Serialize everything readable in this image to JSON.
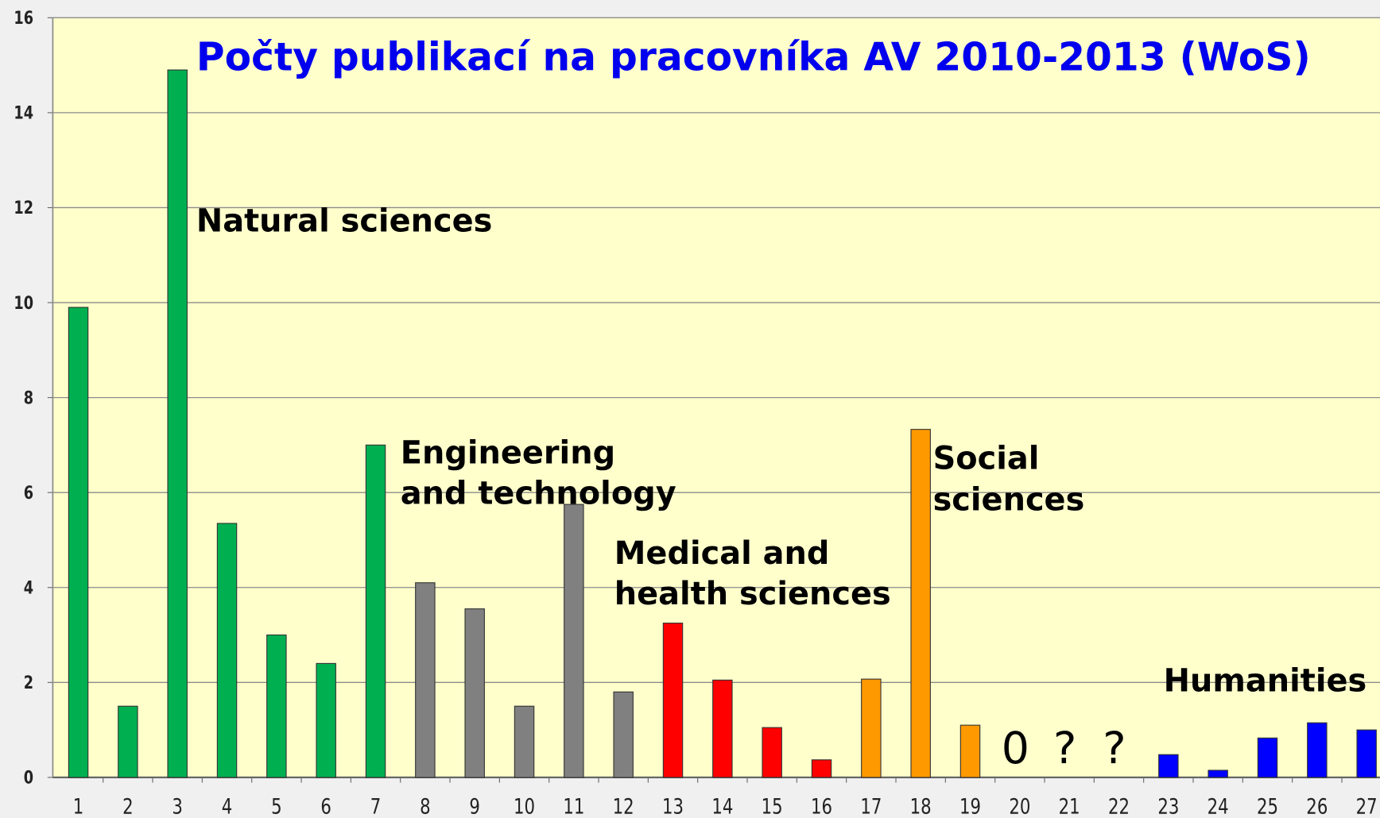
{
  "chart_data": {
    "type": "bar",
    "title": "Počty publikací na pracovníka AV 2010-2013 (WoS)",
    "categories": [
      "1",
      "2",
      "3",
      "4",
      "5",
      "6",
      "7",
      "8",
      "9",
      "10",
      "11",
      "12",
      "13",
      "14",
      "15",
      "16",
      "17",
      "18",
      "19",
      "20",
      "21",
      "22",
      "23",
      "24",
      "25",
      "26",
      "27"
    ],
    "values": [
      9.9,
      1.5,
      14.9,
      5.35,
      3.0,
      2.4,
      7.0,
      4.1,
      3.55,
      1.5,
      5.75,
      1.8,
      3.25,
      2.05,
      1.05,
      0.37,
      2.07,
      7.33,
      1.1,
      0,
      null,
      null,
      0.48,
      0.15,
      0.83,
      1.15,
      1.0
    ],
    "value_labels": [
      null,
      null,
      null,
      null,
      null,
      null,
      null,
      null,
      null,
      null,
      null,
      null,
      null,
      null,
      null,
      null,
      null,
      null,
      null,
      "0",
      "?",
      "?",
      null,
      null,
      null,
      null,
      null
    ],
    "colors": [
      "#00b050",
      "#00b050",
      "#00b050",
      "#00b050",
      "#00b050",
      "#00b050",
      "#00b050",
      "#808080",
      "#808080",
      "#808080",
      "#808080",
      "#808080",
      "#ff0000",
      "#ff0000",
      "#ff0000",
      "#ff0000",
      "#ff9900",
      "#ff9900",
      "#ff9900",
      null,
      null,
      null,
      "#0000ff",
      "#0000ff",
      "#0000ff",
      "#0000ff",
      "#0000ff"
    ],
    "annotations": [
      [
        "Natural sciences"
      ],
      [
        "Engineering",
        "and technology"
      ],
      [
        "Medical and",
        "health sciences"
      ],
      [
        "Social",
        "sciences"
      ],
      [
        "Humanities"
      ]
    ],
    "ylim": [
      0,
      16
    ],
    "yticks": [
      0,
      2,
      4,
      6,
      8,
      10,
      12,
      14,
      16
    ],
    "grid": true
  }
}
